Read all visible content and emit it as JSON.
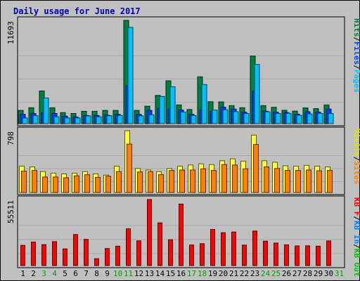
{
  "chart_data": {
    "type": "bar",
    "title": "Daily usage for June 2017",
    "background_color": "#c0c0c0",
    "weekend_day_color": "#00a000",
    "weekday_day_color": "#000000",
    "days": [
      {
        "label": "1",
        "weekend": false
      },
      {
        "label": "2",
        "weekend": false
      },
      {
        "label": "3",
        "weekend": true
      },
      {
        "label": "4",
        "weekend": true
      },
      {
        "label": "5",
        "weekend": false
      },
      {
        "label": "6",
        "weekend": false
      },
      {
        "label": "7",
        "weekend": false
      },
      {
        "label": "8",
        "weekend": false
      },
      {
        "label": "9",
        "weekend": false
      },
      {
        "label": "10",
        "weekend": true
      },
      {
        "label": "11",
        "weekend": true
      },
      {
        "label": "12",
        "weekend": false
      },
      {
        "label": "13",
        "weekend": false
      },
      {
        "label": "14",
        "weekend": false
      },
      {
        "label": "15",
        "weekend": false
      },
      {
        "label": "16",
        "weekend": false
      },
      {
        "label": "17",
        "weekend": true
      },
      {
        "label": "18",
        "weekend": true
      },
      {
        "label": "19",
        "weekend": false
      },
      {
        "label": "20",
        "weekend": false
      },
      {
        "label": "21",
        "weekend": false
      },
      {
        "label": "22",
        "weekend": false
      },
      {
        "label": "23",
        "weekend": false
      },
      {
        "label": "24",
        "weekend": true
      },
      {
        "label": "25",
        "weekend": true
      },
      {
        "label": "26",
        "weekend": false
      },
      {
        "label": "27",
        "weekend": false
      },
      {
        "label": "28",
        "weekend": false
      },
      {
        "label": "29",
        "weekend": false
      },
      {
        "label": "30",
        "weekend": false
      },
      {
        "label": "31",
        "weekend": true
      }
    ],
    "panels": [
      {
        "id": "hits-files-pages",
        "ymax": 11693,
        "ymax_label": "11693",
        "right_label": [
          {
            "text": "Hits",
            "color": "#008040"
          },
          {
            "text": "/",
            "color": "#000000"
          },
          {
            "text": "Files",
            "color": "#0040ff"
          },
          {
            "text": "/",
            "color": "#000000"
          },
          {
            "text": "Pages",
            "color": "#00c0ff"
          }
        ],
        "series": [
          {
            "name": "Hits",
            "color": "#008040",
            "values": [
              1500,
              1800,
              3700,
              1800,
              1250,
              1150,
              1400,
              1400,
              1500,
              1500,
              11693,
              1500,
              1980,
              3200,
              4850,
              2120,
              1600,
              5300,
              2480,
              2460,
              2040,
              1800,
              7650,
              2040,
              1850,
              1510,
              1420,
              1780,
              1700,
              2120,
              null
            ]
          },
          {
            "name": "Files",
            "color": "#0040ff",
            "values": [
              1050,
              1150,
              1200,
              1150,
              850,
              760,
              920,
              920,
              950,
              1050,
              4300,
              1050,
              1500,
              1700,
              1650,
              1550,
              1050,
              1540,
              1400,
              1860,
              1650,
              1300,
              3650,
              1410,
              1300,
              1250,
              1080,
              1350,
              1300,
              1650,
              null
            ]
          },
          {
            "name": "Pages",
            "color": "#00c0ff",
            "values": [
              640,
              900,
              2900,
              780,
              650,
              640,
              880,
              780,
              900,
              930,
              10900,
              880,
              1000,
              3080,
              4180,
              1310,
              920,
              4430,
              1540,
              1570,
              1360,
              1140,
              6700,
              1340,
              1150,
              1170,
              950,
              1090,
              1160,
              1150,
              null
            ]
          }
        ]
      },
      {
        "id": "visits-sites",
        "ymax": 798,
        "ymax_label": "798",
        "right_label": [
          {
            "text": "Visits",
            "color": "#e0e000"
          },
          {
            "text": "/",
            "color": "#000000"
          },
          {
            "text": "Sites",
            "color": "#ff8000"
          }
        ],
        "series": [
          {
            "name": "Visits",
            "color": "#ffff40",
            "values": [
              340,
              330,
              270,
              250,
              240,
              250,
              270,
              240,
              225,
              340,
              798,
              310,
              290,
              270,
              310,
              340,
              355,
              370,
              360,
              410,
              435,
              405,
              740,
              410,
              390,
              345,
              340,
              350,
              340,
              330,
              null
            ]
          },
          {
            "name": "Sites",
            "color": "#ff8000",
            "values": [
              275,
              285,
              200,
              200,
              190,
              215,
              230,
              195,
              210,
              270,
              625,
              265,
              270,
              230,
              285,
              290,
              290,
              305,
              285,
              360,
              355,
              305,
              620,
              330,
              310,
              285,
              285,
              290,
              280,
              285,
              null
            ]
          }
        ]
      },
      {
        "id": "kbytes",
        "ymax": 55511,
        "ymax_label": "55511",
        "right_label": [
          {
            "text": "KB F",
            "color": "#ff0000"
          },
          {
            "text": "/",
            "color": "#000000"
          },
          {
            "text": "KB In",
            "color": "#0080ff"
          },
          {
            "text": "/",
            "color": "#000000"
          },
          {
            "text": "KB Out",
            "color": "#00c000"
          }
        ],
        "series": [
          {
            "name": "KB F",
            "color": "#ff0000",
            "values": [
              17000,
              19800,
              17600,
              20100,
              14000,
              26100,
              22000,
              5800,
              14300,
              16300,
              30900,
              20800,
              55511,
              35900,
              21700,
              51700,
              17300,
              18400,
              30400,
              27600,
              28200,
              17200,
              29000,
              20500,
              18900,
              17400,
              16500,
              16600,
              16300,
              20700,
              null
            ]
          }
        ]
      }
    ]
  }
}
